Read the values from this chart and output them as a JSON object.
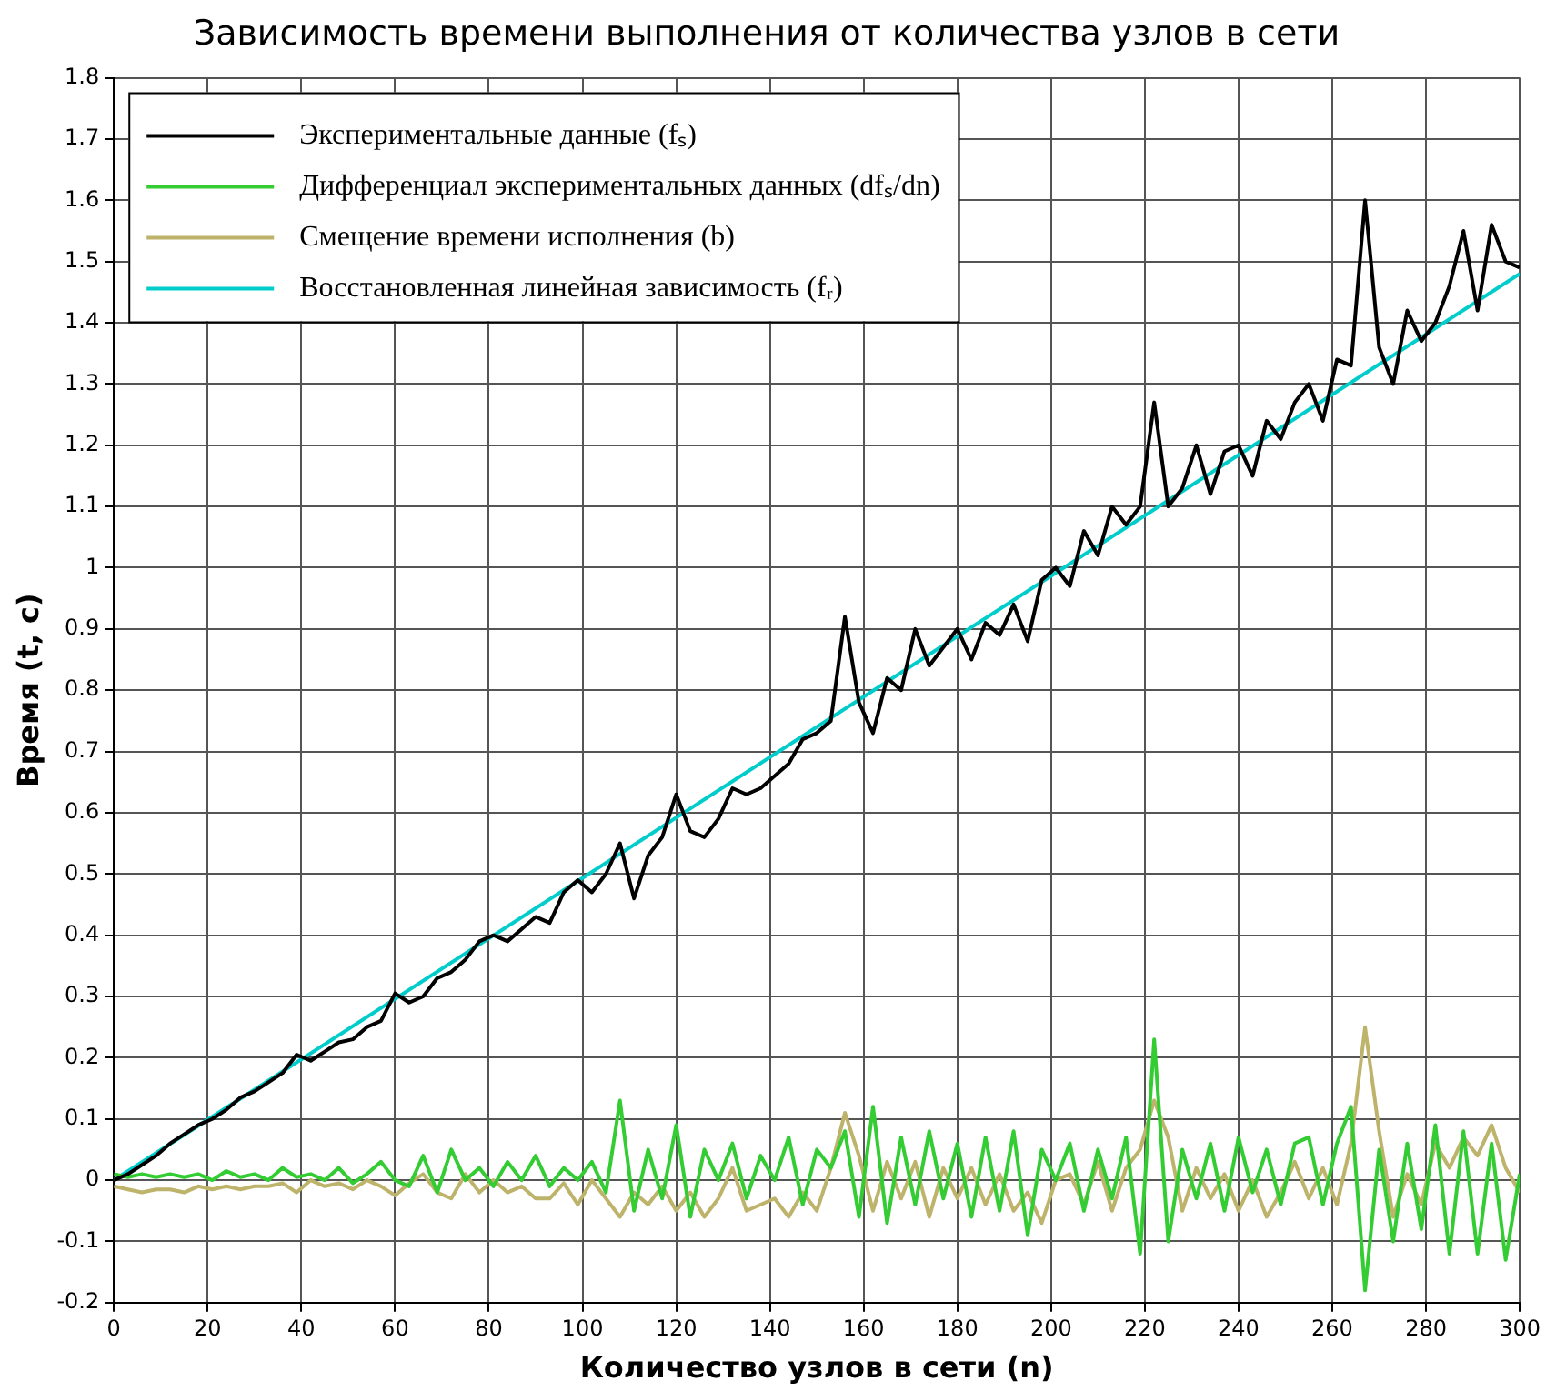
{
  "chart_data": {
    "type": "line",
    "title": "Зависимость времени выполнения от количества узлов в сети",
    "xlabel": "Количество узлов в сети (n)",
    "ylabel": "Время (t, c)",
    "x": [
      0,
      3,
      6,
      9,
      12,
      15,
      18,
      21,
      24,
      27,
      30,
      33,
      36,
      39,
      42,
      45,
      48,
      51,
      54,
      57,
      60,
      63,
      66,
      69,
      72,
      75,
      78,
      81,
      84,
      87,
      90,
      93,
      96,
      99,
      102,
      105,
      108,
      111,
      114,
      117,
      120,
      123,
      126,
      129,
      132,
      135,
      138,
      141,
      144,
      147,
      150,
      153,
      156,
      159,
      162,
      165,
      168,
      171,
      174,
      177,
      180,
      183,
      186,
      189,
      192,
      195,
      198,
      201,
      204,
      207,
      210,
      213,
      216,
      219,
      222,
      225,
      228,
      231,
      234,
      237,
      240,
      243,
      246,
      249,
      252,
      255,
      258,
      261,
      264,
      267,
      270,
      273,
      276,
      279,
      282,
      285,
      288,
      291,
      294,
      297,
      300
    ],
    "series": [
      {
        "name": "Экспериментальные данные (fₛ)",
        "color": "#000000",
        "values": [
          0,
          0.01,
          0.025,
          0.04,
          0.06,
          0.075,
          0.09,
          0.1,
          0.115,
          0.135,
          0.145,
          0.16,
          0.175,
          0.205,
          0.195,
          0.21,
          0.225,
          0.23,
          0.25,
          0.26,
          0.305,
          0.29,
          0.3,
          0.33,
          0.34,
          0.36,
          0.39,
          0.4,
          0.39,
          0.41,
          0.43,
          0.42,
          0.47,
          0.49,
          0.47,
          0.5,
          0.55,
          0.46,
          0.53,
          0.56,
          0.63,
          0.57,
          0.56,
          0.59,
          0.64,
          0.63,
          0.64,
          0.66,
          0.68,
          0.72,
          0.73,
          0.75,
          0.92,
          0.78,
          0.73,
          0.82,
          0.8,
          0.9,
          0.84,
          0.87,
          0.9,
          0.85,
          0.91,
          0.89,
          0.94,
          0.88,
          0.98,
          1,
          0.97,
          1.06,
          1.02,
          1.1,
          1.07,
          1.1,
          1.27,
          1.1,
          1.13,
          1.2,
          1.12,
          1.19,
          1.2,
          1.15,
          1.24,
          1.21,
          1.27,
          1.3,
          1.24,
          1.34,
          1.33,
          1.6,
          1.36,
          1.3,
          1.42,
          1.37,
          1.4,
          1.46,
          1.55,
          1.42,
          1.56,
          1.5,
          1.49
        ]
      },
      {
        "name": "Дифференциал экспериментальных данных (dfₛ/dn)",
        "color": "#33cc33",
        "values": [
          0.01,
          0.005,
          0.01,
          0.005,
          0.01,
          0.005,
          0.01,
          0,
          0.015,
          0.005,
          0.01,
          0,
          0.02,
          0.005,
          0.01,
          0,
          0.02,
          -0.005,
          0.01,
          0.03,
          0,
          -0.01,
          0.04,
          -0.02,
          0.05,
          0,
          0.02,
          -0.01,
          0.03,
          0,
          0.04,
          -0.01,
          0.02,
          0,
          0.03,
          -0.02,
          0.13,
          -0.05,
          0.05,
          -0.03,
          0.09,
          -0.06,
          0.05,
          0,
          0.06,
          -0.03,
          0.04,
          0,
          0.07,
          -0.04,
          0.05,
          0.02,
          0.08,
          -0.06,
          0.12,
          -0.07,
          0.07,
          -0.04,
          0.08,
          -0.03,
          0.06,
          -0.06,
          0.07,
          -0.05,
          0.08,
          -0.09,
          0.05,
          0,
          0.06,
          -0.05,
          0.05,
          -0.03,
          0.07,
          -0.12,
          0.23,
          -0.1,
          0.05,
          -0.03,
          0.06,
          -0.05,
          0.07,
          -0.02,
          0.05,
          -0.04,
          0.06,
          0.07,
          -0.04,
          0.06,
          0.12,
          -0.18,
          0.05,
          -0.1,
          0.06,
          -0.08,
          0.09,
          -0.12,
          0.08,
          -0.12,
          0.06,
          -0.13,
          0.01
        ]
      },
      {
        "name": "Смещение времени исполнения (b)",
        "color": "#bdb36b",
        "values": [
          -0.01,
          -0.015,
          -0.02,
          -0.015,
          -0.015,
          -0.02,
          -0.01,
          -0.015,
          -0.01,
          -0.015,
          -0.01,
          -0.01,
          -0.005,
          -0.02,
          0,
          -0.01,
          -0.005,
          -0.015,
          0,
          -0.01,
          -0.025,
          -0.005,
          0.01,
          -0.02,
          -0.03,
          0.01,
          -0.02,
          0,
          -0.02,
          -0.01,
          -0.03,
          -0.03,
          -0.005,
          -0.04,
          0,
          -0.03,
          -0.06,
          -0.02,
          -0.04,
          -0.01,
          -0.05,
          -0.02,
          -0.06,
          -0.03,
          0.02,
          -0.05,
          -0.04,
          -0.03,
          -0.06,
          -0.02,
          -0.05,
          0.02,
          0.11,
          0.04,
          -0.05,
          0.03,
          -0.03,
          0.03,
          -0.06,
          0.02,
          -0.03,
          0.02,
          -0.04,
          0.01,
          -0.05,
          -0.02,
          -0.07,
          0,
          0.01,
          -0.04,
          0.03,
          -0.05,
          0.02,
          0.05,
          0.13,
          0.07,
          -0.05,
          0.02,
          -0.03,
          0.01,
          -0.05,
          0,
          -0.06,
          -0.02,
          0.03,
          -0.03,
          0.02,
          -0.04,
          0.06,
          0.25,
          0.08,
          -0.06,
          0.01,
          -0.04,
          0.06,
          0.02,
          0.07,
          0.04,
          0.09,
          0.02,
          -0.02
        ]
      },
      {
        "name": "Восстановленная линейная зависимость (fᵣ)",
        "color": "#00cccc",
        "x": [
          0,
          300
        ],
        "values": [
          0,
          1.48
        ]
      }
    ],
    "xlim": [
      0,
      300
    ],
    "xticks": [
      0,
      20,
      40,
      60,
      80,
      100,
      120,
      140,
      160,
      180,
      200,
      220,
      240,
      260,
      280,
      300
    ],
    "ylim": [
      -0.2,
      1.8
    ],
    "yticks": [
      -0.2,
      -0.1,
      0,
      0.1,
      0.2,
      0.3,
      0.4,
      0.5,
      0.6,
      0.7,
      0.8,
      0.9,
      1,
      1.1,
      1.2,
      1.3,
      1.4,
      1.5,
      1.6,
      1.7,
      1.8
    ],
    "grid": true,
    "legend": "top left"
  }
}
